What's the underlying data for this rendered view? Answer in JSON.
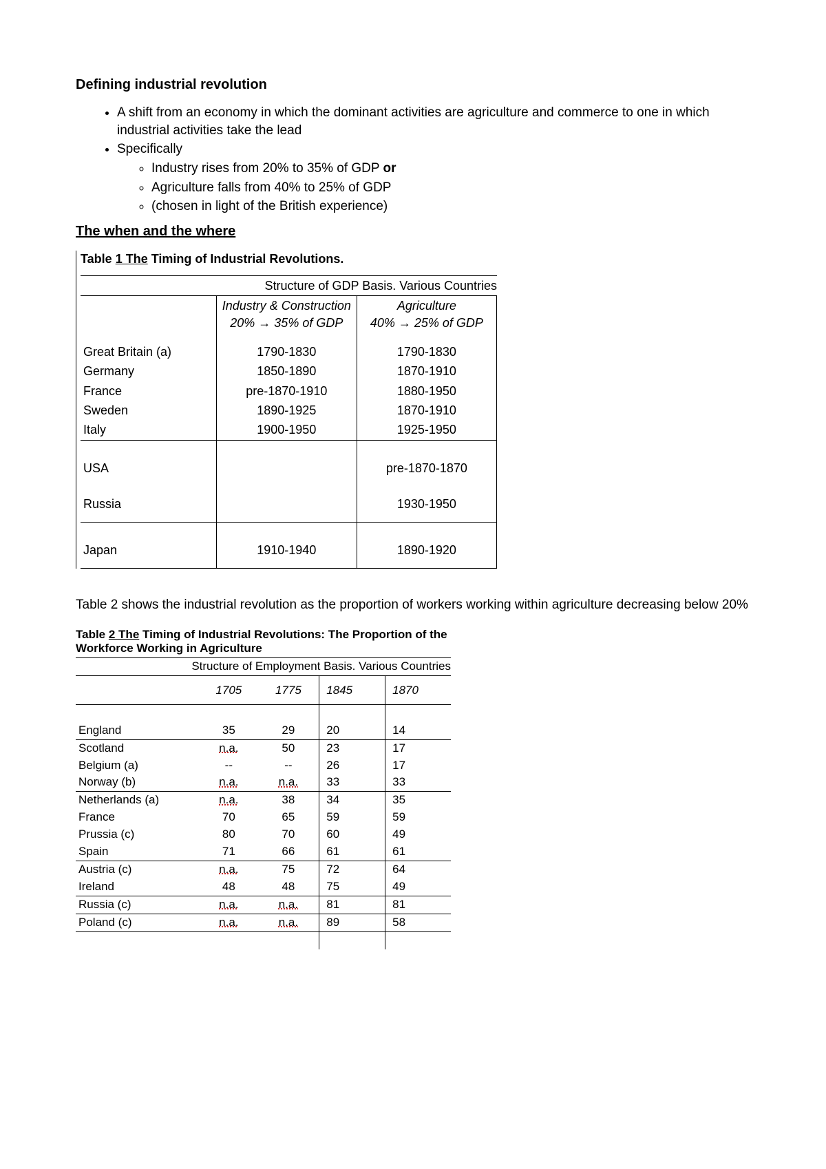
{
  "heading1": "Defining industrial revolution",
  "bullet1": "A shift from an economy in which the dominant activities are agriculture and commerce to one in which industrial activities take the lead",
  "bullet2": "Specifically",
  "sub1_a": "Industry rises from 20% to 35% of GDP ",
  "sub1_b": "or",
  "sub2": "Agriculture falls from 40% to 25% of GDP",
  "sub3": "(chosen in light of the British experience)",
  "heading2": "The when and the where",
  "table1": {
    "title_pre": "Table ",
    "title_u": "1  The",
    "title_post": " Timing of Industrial Revolutions.",
    "sub": "Structure of GDP Basis.  Various Countries",
    "col_ind_l1": "Industry & Construction",
    "col_ind_l2": "20% → 35% of GDP",
    "col_agr_l1": "Agriculture",
    "col_agr_l2": "40% → 25% of GDP",
    "rows_group1": [
      {
        "c": "Great Britain (a)",
        "i": "1790-1830",
        "a": "1790-1830"
      },
      {
        "c": "Germany",
        "i": "1850-1890",
        "a": "1870-1910"
      },
      {
        "c": "France",
        "i": "pre-1870-1910",
        "a": "1880-1950"
      },
      {
        "c": "Sweden",
        "i": "1890-1925",
        "a": "1870-1910"
      },
      {
        "c": "Italy",
        "i": "1900-1950",
        "a": "1925-1950"
      }
    ],
    "rows_group2": [
      {
        "c": "USA",
        "i": "",
        "a": "pre-1870-1870"
      }
    ],
    "rows_group3": [
      {
        "c": "Russia",
        "i": "",
        "a": "1930-1950"
      }
    ],
    "rows_group4": [
      {
        "c": "Japan",
        "i": "1910-1940",
        "a": "1890-1920"
      }
    ]
  },
  "para2": "Table 2 shows the industrial revolution as the proportion of workers working within agriculture decreasing below 20%",
  "table2": {
    "title_pre": "Table ",
    "title_u": "2  The",
    "title_post": " Timing of Industrial Revolutions: The Proportion of the Workforce Working in Agriculture",
    "sub": "Structure of Employment Basis.  Various Countries",
    "years": [
      "1705",
      "1775",
      "1845",
      "1870"
    ],
    "groups": [
      [
        {
          "c": "England",
          "v": [
            "35",
            "29",
            "20",
            "14"
          ]
        }
      ],
      [
        {
          "c": "Scotland",
          "v": [
            "n.a.",
            "50",
            "23",
            "17"
          ]
        },
        {
          "c": "Belgium (a)",
          "v": [
            "--",
            "--",
            "26",
            "17"
          ]
        },
        {
          "c": "Norway (b)",
          "v": [
            "n.a.",
            "n.a.",
            "33",
            "33"
          ]
        }
      ],
      [
        {
          "c": "Netherlands (a)",
          "v": [
            "n.a.",
            "38",
            "34",
            "35"
          ]
        },
        {
          "c": "France",
          "v": [
            "70",
            "65",
            "59",
            "59"
          ]
        },
        {
          "c": "Prussia (c)",
          "v": [
            "80",
            "70",
            "60",
            "49"
          ]
        },
        {
          "c": "Spain",
          "v": [
            "71",
            "66",
            "61",
            "61"
          ]
        }
      ],
      [
        {
          "c": "Austria (c)",
          "v": [
            "n.a.",
            "75",
            "72",
            "64"
          ]
        },
        {
          "c": "Ireland",
          "v": [
            "48",
            "48",
            "75",
            "49"
          ]
        }
      ],
      [
        {
          "c": "Russia (c)",
          "v": [
            "n.a.",
            "n.a.",
            "81",
            "81"
          ]
        }
      ],
      [
        {
          "c": "Poland (c)",
          "v": [
            "n.a.",
            "n.a.",
            "89",
            "58"
          ]
        }
      ]
    ]
  }
}
